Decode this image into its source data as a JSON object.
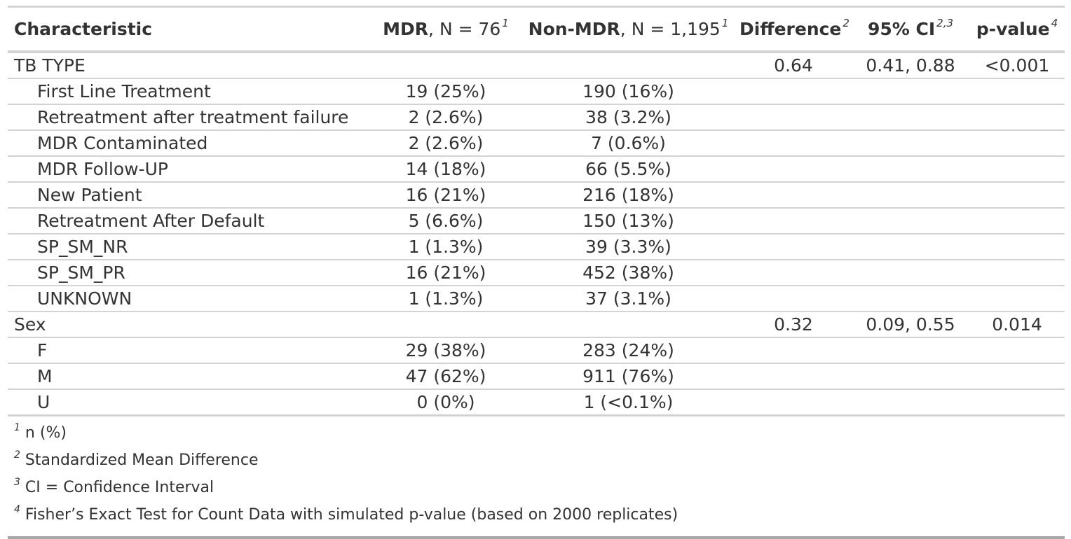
{
  "table": {
    "headers": [
      {
        "bold": "Characteristic",
        "rest": "",
        "sup": ""
      },
      {
        "bold": "MDR",
        "rest": ", N = 76",
        "sup": "1"
      },
      {
        "bold": "Non-MDR",
        "rest": ", N = 1,195",
        "sup": "1"
      },
      {
        "bold": "Difference",
        "rest": "",
        "sup": "2"
      },
      {
        "bold": "95% CI",
        "rest": "",
        "sup": "2,3"
      },
      {
        "bold": "p-value",
        "rest": "",
        "sup": "4"
      }
    ],
    "rows": [
      {
        "label": "TB TYPE",
        "mdr": "",
        "nonmdr": "",
        "diff": "0.64",
        "ci": "0.41, 0.88",
        "p": "<0.001"
      },
      {
        "label": "First Line Treatment",
        "mdr": "19 (25%)",
        "nonmdr": "190 (16%)",
        "diff": "",
        "ci": "",
        "p": ""
      },
      {
        "label": "Retreatment after treatment failure",
        "mdr": "2 (2.6%)",
        "nonmdr": "38 (3.2%)",
        "diff": "",
        "ci": "",
        "p": ""
      },
      {
        "label": "MDR Contaminated",
        "mdr": "2 (2.6%)",
        "nonmdr": "7 (0.6%)",
        "diff": "",
        "ci": "",
        "p": ""
      },
      {
        "label": "MDR Follow-UP",
        "mdr": "14 (18%)",
        "nonmdr": "66 (5.5%)",
        "diff": "",
        "ci": "",
        "p": ""
      },
      {
        "label": "New Patient",
        "mdr": "16 (21%)",
        "nonmdr": "216 (18%)",
        "diff": "",
        "ci": "",
        "p": ""
      },
      {
        "label": "Retreatment After Default",
        "mdr": "5 (6.6%)",
        "nonmdr": "150 (13%)",
        "diff": "",
        "ci": "",
        "p": ""
      },
      {
        "label": "SP_SM_NR",
        "mdr": "1 (1.3%)",
        "nonmdr": "39 (3.3%)",
        "diff": "",
        "ci": "",
        "p": ""
      },
      {
        "label": "SP_SM_PR",
        "mdr": "16 (21%)",
        "nonmdr": "452 (38%)",
        "diff": "",
        "ci": "",
        "p": ""
      },
      {
        "label": "UNKNOWN",
        "mdr": "1 (1.3%)",
        "nonmdr": "37 (3.1%)",
        "diff": "",
        "ci": "",
        "p": ""
      },
      {
        "label": "Sex",
        "mdr": "",
        "nonmdr": "",
        "diff": "0.32",
        "ci": "0.09, 0.55",
        "p": "0.014"
      },
      {
        "label": "F",
        "mdr": "29 (38%)",
        "nonmdr": "283 (24%)",
        "diff": "",
        "ci": "",
        "p": ""
      },
      {
        "label": "M",
        "mdr": "47 (62%)",
        "nonmdr": "911 (76%)",
        "diff": "",
        "ci": "",
        "p": ""
      },
      {
        "label": "U",
        "mdr": "0 (0%)",
        "nonmdr": "1 (<0.1%)",
        "diff": "",
        "ci": "",
        "p": ""
      }
    ]
  },
  "footnotes": [
    {
      "sup": "1",
      "text": "n (%)"
    },
    {
      "sup": "2",
      "text": "Standardized Mean Difference"
    },
    {
      "sup": "3",
      "text": "CI = Confidence Interval"
    },
    {
      "sup": "4",
      "text": "Fisher’s Exact Test for Count Data with simulated p-value (based on 2000 replicates)"
    }
  ]
}
